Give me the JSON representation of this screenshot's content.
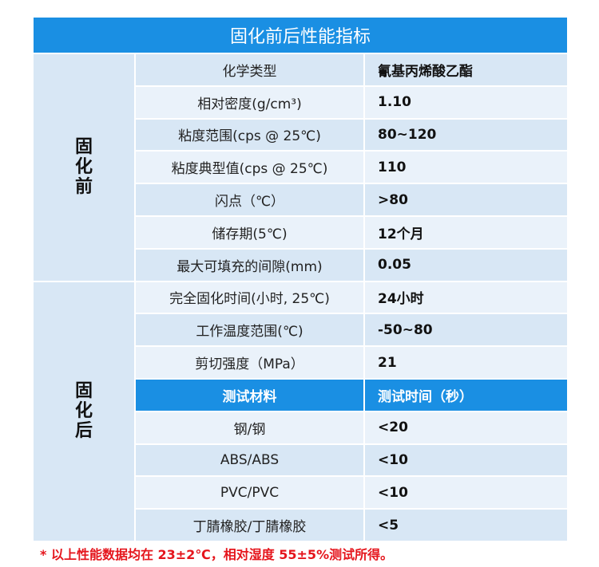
{
  "table": {
    "title": "固化前后性能指标",
    "groups": [
      {
        "label": "固化前",
        "rows": [
          [
            "化学类型",
            "氰基丙烯酸乙酯"
          ],
          [
            "相对密度(g/cm³)",
            "1.10"
          ],
          [
            "粘度范围(cps @ 25℃)",
            "80~120"
          ],
          [
            "粘度典型值(cps @ 25℃)",
            "110"
          ],
          [
            "闪点（℃）",
            ">80"
          ],
          [
            "储存期(5℃)",
            "12个月"
          ],
          [
            "最大可填充的间隙(mm)",
            "0.05"
          ]
        ]
      },
      {
        "label": "固化后",
        "rows": [
          [
            "完全固化时间(小时, 25℃)",
            "24小时"
          ],
          [
            "工作温度范围(℃)",
            "-50~80"
          ],
          [
            "剪切强度（MPa）",
            "21"
          ]
        ],
        "sub_header": [
          "测试材料",
          "测试时间（秒）"
        ],
        "sub_rows": [
          [
            "钢/钢",
            "<20"
          ],
          [
            "ABS/ABS",
            "<10"
          ],
          [
            "PVC/PVC",
            "<10"
          ],
          [
            "丁腈橡胶/丁腈橡胶",
            "<5"
          ]
        ]
      }
    ],
    "note": "* 以上性能数据均在 23±2℃，相对湿度 55±5%测试所得。"
  }
}
